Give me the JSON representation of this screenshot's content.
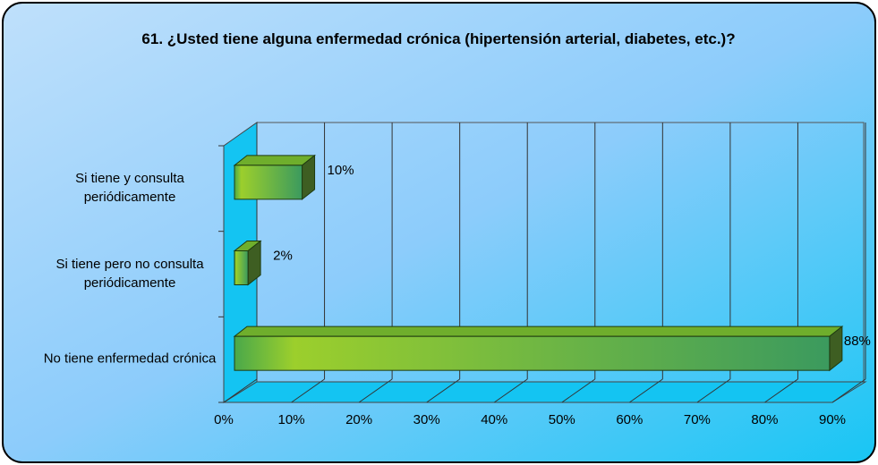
{
  "chart_data": {
    "type": "bar3d_horizontal",
    "title": "61. ¿Usted tiene alguna enfermedad crónica (hipertensión arterial, diabetes, etc.)?",
    "categories": [
      "Si tiene y consulta periódicamente",
      "Si tiene pero no consulta periódicamente",
      "No tiene enfermedad crónica"
    ],
    "values": [
      10,
      2,
      88
    ],
    "value_labels": [
      "10%",
      "2%",
      "88%"
    ],
    "color": "#5fae3a",
    "xlim": [
      0,
      90
    ],
    "xticks": [
      {
        "value": 0,
        "label": "0%"
      },
      {
        "value": 10,
        "label": "10%"
      },
      {
        "value": 20,
        "label": "20%"
      },
      {
        "value": 30,
        "label": "30%"
      },
      {
        "value": 40,
        "label": "40%"
      },
      {
        "value": 50,
        "label": "50%"
      },
      {
        "value": 60,
        "label": "60%"
      },
      {
        "value": 70,
        "label": "70%"
      },
      {
        "value": 80,
        "label": "80%"
      },
      {
        "value": 90,
        "label": "90%"
      }
    ],
    "grid": true
  }
}
